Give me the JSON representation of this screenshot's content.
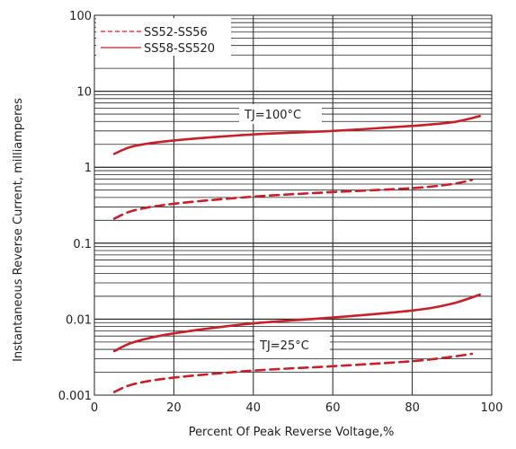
{
  "chart_data": {
    "type": "line",
    "xlabel": "Percent Of Peak Reverse Voltage,%",
    "ylabel": "Instantaneous Reverse Current, milliamperes",
    "xlim": [
      0,
      100
    ],
    "ylim": [
      0.001,
      100
    ],
    "yscale": "log",
    "x_ticks": [
      "0",
      "20",
      "40",
      "60",
      "80",
      "100"
    ],
    "y_ticks": [
      "0.001",
      "0.01",
      "0.1",
      "1",
      "10",
      "100"
    ],
    "grid": true,
    "legend": {
      "position": "top-left",
      "entries": [
        "SS52-SS56",
        "SS58-SS520"
      ]
    },
    "annotations": [
      "TJ=100°C",
      "TJ=25°C"
    ],
    "series": [
      {
        "name": "SS58-SS520",
        "label": "TJ=100°C",
        "style": "solid",
        "color": "#c8202a",
        "x": [
          5,
          10,
          20,
          40,
          60,
          80,
          90,
          97
        ],
        "y": [
          1.5,
          1.9,
          2.25,
          2.7,
          3.0,
          3.5,
          3.9,
          4.7
        ]
      },
      {
        "name": "SS52-SS56",
        "label": "TJ=100°C",
        "style": "dashed",
        "color": "#c8202a",
        "x": [
          5,
          10,
          20,
          40,
          60,
          80,
          90,
          95
        ],
        "y": [
          0.21,
          0.27,
          0.33,
          0.41,
          0.47,
          0.53,
          0.6,
          0.68
        ]
      },
      {
        "name": "SS58-SS520",
        "label": "TJ=25°C",
        "style": "solid",
        "color": "#c8202a",
        "x": [
          5,
          10,
          20,
          40,
          60,
          80,
          90,
          97
        ],
        "y": [
          0.0038,
          0.005,
          0.0065,
          0.0088,
          0.0105,
          0.013,
          0.016,
          0.021
        ]
      },
      {
        "name": "SS52-SS56",
        "label": "TJ=25°C",
        "style": "dashed",
        "color": "#c8202a",
        "x": [
          5,
          10,
          20,
          40,
          60,
          80,
          90,
          95
        ],
        "y": [
          0.0011,
          0.0014,
          0.0017,
          0.0021,
          0.0024,
          0.0028,
          0.0032,
          0.0035
        ]
      }
    ]
  }
}
